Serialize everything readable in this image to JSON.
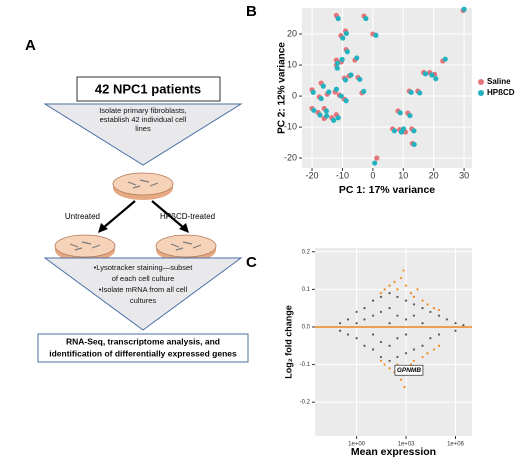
{
  "panel_labels": [
    "A",
    "B",
    "C"
  ],
  "diagram": {
    "patients": "42 NPC1 patients",
    "step1": [
      "Isolate primary fibroblasts,",
      "establish 42 individual cell",
      "lines"
    ],
    "untreated": "Untreated",
    "treated": "HPßCD-treated",
    "step2": [
      "•Lysotracker staining—subset",
      "of each cell culture",
      "•Isolate mRNA from all cell",
      "cultures"
    ],
    "result": [
      "RNA-Seq, transcriptome analysis, and",
      "identification of differentially expressed genes"
    ]
  },
  "chart_data": [
    {
      "type": "scatter",
      "xlabel": "PC 1: 17% variance",
      "ylabel": "PC 2: 12% variance",
      "xlim": [
        -23.3,
        32.6
      ],
      "ylim": [
        -23.2,
        28.4
      ],
      "xticks": [
        -20,
        -10,
        0,
        10,
        20,
        30
      ],
      "yticks": [
        -20,
        -10,
        0,
        10,
        20
      ],
      "grid": true,
      "legend": "right",
      "series": [
        {
          "name": "Saline",
          "color": "#e5737a",
          "x": [
            -12,
            -9,
            -10.5,
            -8.8,
            -12,
            -10.4,
            -12,
            -9.4,
            -7.8,
            -4.9,
            -5.9,
            -2.9,
            0,
            -3.6,
            -17,
            -20,
            -17.6,
            -15,
            -12.4,
            -11,
            -20,
            -18,
            -16,
            -16,
            -13.5,
            -12,
            -9.4,
            23,
            16.7,
            18.7,
            20.3,
            12,
            14.8,
            8.3,
            11.5,
            6.5,
            8.8,
            10.7,
            12.8,
            13,
            1.3,
            29.7
          ],
          "values": [
            26,
            21,
            19.5,
            15,
            11.6,
            11,
            10,
            5.8,
            6.5,
            6,
            11.6,
            25.8,
            20,
            1,
            4.2,
            2,
            -0.3,
            0.6,
            1.3,
            0.3,
            -4,
            -5.3,
            -4,
            -7.2,
            -7,
            -6,
            -1,
            11.3,
            7.6,
            7.6,
            7,
            1.6,
            1.6,
            -4.8,
            -5.5,
            -10.6,
            -10.8,
            -11.6,
            -10.6,
            -15.3,
            -20,
            27.6
          ]
        },
        {
          "name": "HPßCD",
          "color": "#22b2bf",
          "x": [
            -11.4,
            -8.7,
            -9.9,
            -8.4,
            -11.6,
            -10.1,
            -11.7,
            -9,
            -7.2,
            -4.3,
            -5.3,
            -2.3,
            1,
            -3,
            -16.3,
            -19.6,
            -17,
            -14.5,
            -12,
            -10.4,
            -19.4,
            -17.4,
            -15.3,
            -15.2,
            -12.9,
            -11.4,
            -8.8,
            23.8,
            17.3,
            19.4,
            20.7,
            12.6,
            15.4,
            9,
            12.2,
            7.1,
            9.4,
            10.1,
            13.5,
            13.6,
            0.6,
            30
          ],
          "values": [
            25,
            20.2,
            18.7,
            14.3,
            10.6,
            11.8,
            9,
            5.2,
            6.8,
            5.4,
            12.3,
            25,
            19.6,
            1.5,
            3.2,
            1.2,
            -0.8,
            1.3,
            2.2,
            0,
            -4.6,
            -6.1,
            -4.8,
            -6.4,
            -7.8,
            -7,
            -1.5,
            11.9,
            7.2,
            6.8,
            5.6,
            1.2,
            1,
            -5.4,
            -6.3,
            -11.2,
            -11.6,
            -10.6,
            -11.2,
            -15.6,
            -21.6,
            28
          ]
        }
      ]
    },
    {
      "type": "scatter",
      "xlabel": "Mean expression",
      "ylabel": "Log₂ fold change",
      "xscale": "log",
      "xlim": [
        0.003,
        10000000
      ],
      "ylim": [
        -0.29,
        0.21
      ],
      "xticks": [
        {
          "value": 1,
          "label": "1e+00"
        },
        {
          "value": 1000,
          "label": "1e+03"
        },
        {
          "value": 1000000,
          "label": "1e+06"
        }
      ],
      "yticks": [
        -0.2,
        -0.1,
        {
          "value": 0,
          "label": "0.0"
        },
        0.1,
        0.2
      ],
      "grid": true,
      "hline": 0,
      "hline_color": "#e8871e",
      "annotation": {
        "text": "GPNMB",
        "x": 1500,
        "y": -0.115
      },
      "series": [
        {
          "color": "#555555",
          "x": [
            0.1,
            0.1,
            0.3,
            0.3,
            1,
            1,
            1,
            3,
            3,
            3,
            10,
            10,
            10,
            10,
            30,
            30,
            30,
            30,
            100,
            100,
            100,
            100,
            100,
            300,
            300,
            300,
            300,
            1000,
            1000,
            1000,
            1000,
            3000,
            3000,
            3000,
            10000,
            10000,
            10000,
            30000,
            30000,
            100000,
            100000,
            300000,
            1000000,
            1000000,
            3000000
          ],
          "values": [
            0.01,
            -0.01,
            0.02,
            -0.02,
            0.04,
            -0.03,
            0.01,
            0.05,
            -0.05,
            0.02,
            0.07,
            -0.06,
            0.03,
            -0.02,
            0.08,
            -0.08,
            0.04,
            -0.04,
            0.09,
            -0.09,
            0.05,
            -0.05,
            0.01,
            0.08,
            -0.08,
            0.03,
            -0.03,
            0.07,
            -0.07,
            0.02,
            -0.02,
            0.06,
            -0.06,
            0.03,
            0.05,
            -0.05,
            0.01,
            0.04,
            -0.03,
            0.03,
            -0.02,
            0.02,
            0.01,
            -0.01,
            0.005
          ]
        },
        {
          "color": "#f08a1c",
          "x": [
            30,
            50,
            100,
            200,
            300,
            500,
            1000,
            2000,
            3000,
            5000,
            10000,
            20000,
            50000,
            100000,
            30,
            50,
            100,
            200,
            300,
            500,
            1000,
            2000,
            3000,
            5000,
            10000,
            20000,
            50000,
            100000,
            700,
            800
          ],
          "values": [
            0.09,
            0.1,
            0.11,
            0.12,
            0.1,
            0.13,
            0.11,
            0.09,
            0.08,
            0.1,
            0.07,
            0.06,
            0.05,
            0.045,
            -0.09,
            -0.1,
            -0.11,
            -0.12,
            -0.1,
            -0.14,
            -0.12,
            -0.1,
            -0.09,
            -0.11,
            -0.08,
            -0.07,
            -0.06,
            -0.05,
            0.15,
            -0.16
          ]
        }
      ]
    }
  ]
}
